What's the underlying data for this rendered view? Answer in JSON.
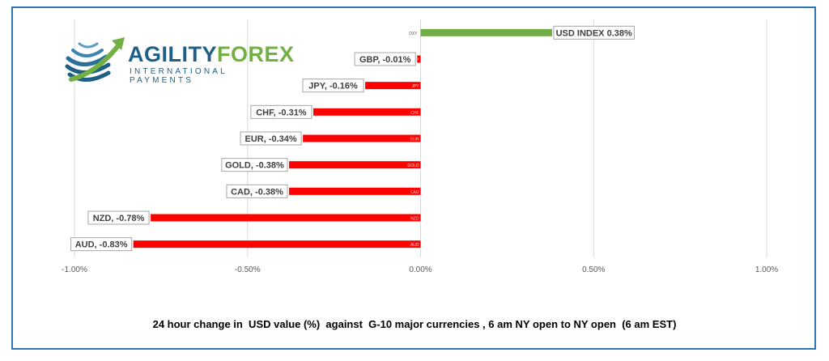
{
  "logo": {
    "word_part1": "AGILITY",
    "word_part2": "FOREX",
    "tagline": "INTERNATIONAL PAYMENTS",
    "icon": "globe-swoosh-logo-icon",
    "colors": {
      "primary": "#1f5f86",
      "accent": "#72b043"
    }
  },
  "caption": "24 hour change in  USD value (%)  against  G-10 major currencies , 6 am NY open to NY open  (6 am EST)",
  "chart_data": {
    "type": "bar",
    "orientation": "horizontal",
    "categories": [
      "DXY",
      "GBP",
      "JPY",
      "CHF",
      "EUR",
      "GOLD",
      "CAD",
      "NZD",
      "AUD"
    ],
    "values": [
      0.38,
      -0.01,
      -0.16,
      -0.31,
      -0.34,
      -0.38,
      -0.38,
      -0.78,
      -0.83
    ],
    "data_labels": [
      "USD INDEX 0.38%",
      "GBP, -0.01%",
      "JPY, -0.16%",
      "CHF, -0.31%",
      "EUR, -0.34%",
      "GOLD, -0.38%",
      "CAD, -0.38%",
      "NZD, -0.78%",
      "AUD, -0.83%"
    ],
    "xlim": [
      -1.0,
      1.0
    ],
    "xticks": [
      -1.0,
      -0.5,
      0.0,
      0.5,
      1.0
    ],
    "xtick_labels": [
      "-1.00%",
      "-0.50%",
      "0.00%",
      "0.50%",
      "1.00%"
    ],
    "grid": "vertical",
    "colors": {
      "positive": "#70ad47",
      "negative": "#ff0000",
      "grid": "#d9d9d9",
      "axis_text": "#595959"
    }
  }
}
